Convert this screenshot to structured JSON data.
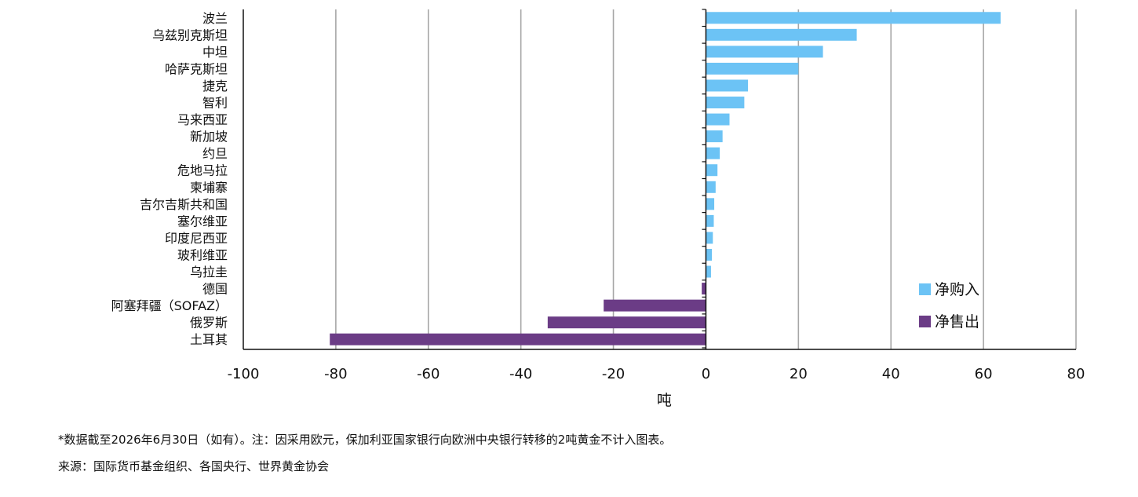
{
  "chart_data": {
    "type": "bar",
    "orientation": "horizontal",
    "categories": [
      "波兰",
      "乌兹别克斯坦",
      "中坦",
      "哈萨克斯坦",
      "捷克",
      "智利",
      "马来西亚",
      "新加坡",
      "约旦",
      "危地马拉",
      "柬埔寨",
      "吉尔吉斯共和国",
      "塞尔维亚",
      "印度尼西亚",
      "玻利维亚",
      "乌拉圭",
      "德国",
      "阿塞拜疆（SOFAZ）",
      "俄罗斯",
      "土耳其"
    ],
    "values": [
      63.7,
      32.6,
      25.3,
      20.0,
      9.1,
      8.3,
      5.1,
      3.6,
      3.0,
      2.5,
      2.1,
      1.8,
      1.7,
      1.5,
      1.3,
      1.1,
      -0.9,
      -22.1,
      -34.2,
      -81.3
    ],
    "series": [
      {
        "name": "净购入",
        "color": "#6cc3f5"
      },
      {
        "name": "净售出",
        "color": "#6b3c86"
      }
    ],
    "xlabel": "吨",
    "ylabel": "",
    "xlim": [
      -100,
      80
    ],
    "xticks": [
      "-100",
      "-80",
      "-60",
      "-40",
      "-20",
      "0",
      "20",
      "40",
      "60",
      "80"
    ],
    "grid": "vertical",
    "legend_position": "bottom-right"
  },
  "footnotes": {
    "note": "*数据截至2026年6月30日（如有）。注：因采用欧元，保加利亚国家银行向欧洲中央银行转移的2吨黄金不计入图表。",
    "source": "来源：国际货币基金组织、各国央行、世界黄金协会"
  }
}
